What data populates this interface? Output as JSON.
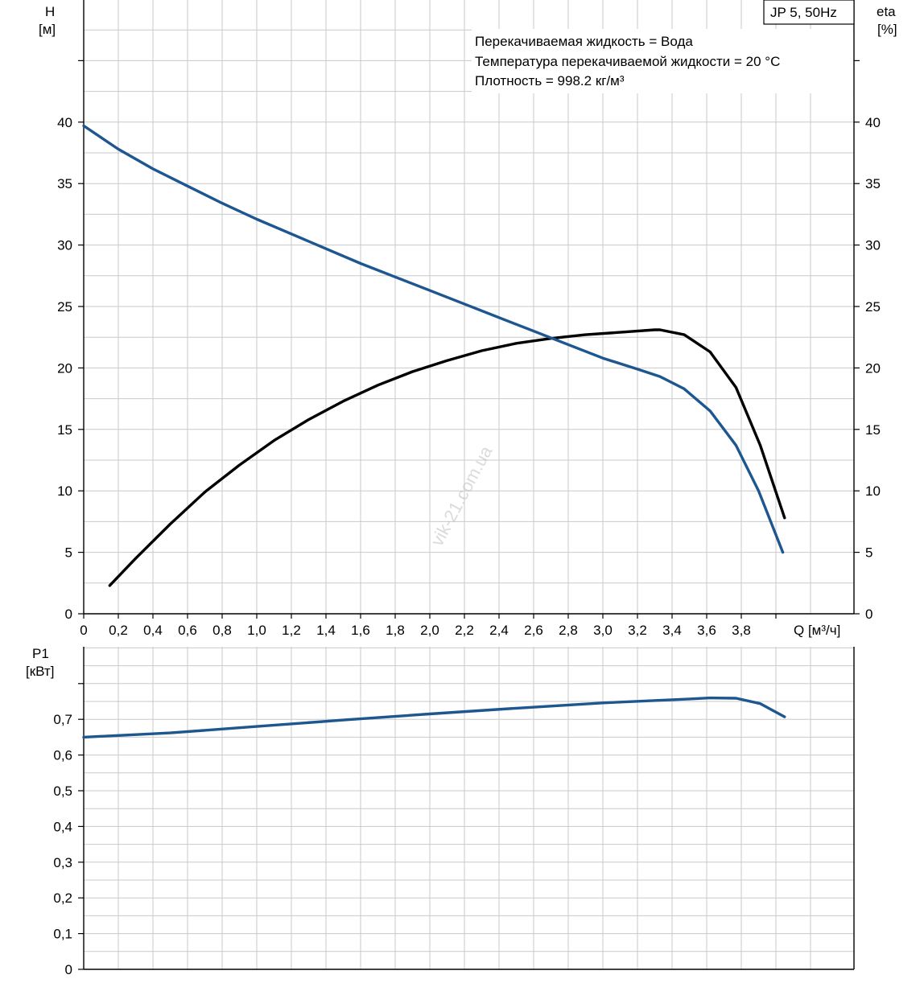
{
  "pump_label": "JP 5, 50Hz",
  "info_lines": [
    "Перекачиваемая жидкость = Вода",
    "Температура перекачиваемой жидкости = 20 °C",
    "Плотность = 998.2 кг/м³"
  ],
  "watermark": "vik-21.com.ua",
  "colors": {
    "head": "#1e5690",
    "efficiency": "#000000",
    "power": "#1e5690",
    "grid": "#c9c9c9"
  },
  "chart_data": [
    {
      "type": "line",
      "x_label": "Q [м³/ч]",
      "x_ticks": [
        "0",
        "0,2",
        "0,4",
        "0,6",
        "0,8",
        "1,0",
        "1,2",
        "1,4",
        "1,6",
        "1,8",
        "2,0",
        "2,2",
        "2,4",
        "2,6",
        "2,8",
        "3,0",
        "3,2",
        "3,4",
        "3,6",
        "3,8"
      ],
      "xlim": [
        0,
        4.4
      ],
      "y_left_label": [
        "H",
        "[м]"
      ],
      "y_right_label": [
        "eta",
        "[%]"
      ],
      "y_ticks": [
        "0",
        "5",
        "10",
        "15",
        "20",
        "25",
        "30",
        "35",
        "40"
      ],
      "ylim": [
        0,
        40
      ],
      "grid": true,
      "series": [
        {
          "name": "H",
          "axis": "left",
          "x": [
            0,
            0.2,
            0.4,
            0.6,
            0.8,
            1.0,
            1.2,
            1.4,
            1.6,
            1.8,
            2.0,
            2.2,
            2.4,
            2.6,
            2.8,
            3.0,
            3.2,
            3.33,
            3.47,
            3.62,
            3.77,
            3.9,
            4.04
          ],
          "values": [
            39.7,
            37.8,
            36.2,
            34.8,
            33.4,
            32.1,
            30.9,
            29.7,
            28.5,
            27.4,
            26.3,
            25.2,
            24.1,
            23.0,
            21.9,
            20.8,
            19.9,
            19.3,
            18.3,
            16.5,
            13.7,
            10.0,
            5.0
          ]
        },
        {
          "name": "eta",
          "axis": "right",
          "x": [
            0.15,
            0.3,
            0.5,
            0.7,
            0.9,
            1.1,
            1.3,
            1.5,
            1.7,
            1.9,
            2.1,
            2.3,
            2.5,
            2.7,
            2.9,
            3.1,
            3.3,
            3.33,
            3.47,
            3.62,
            3.77,
            3.91,
            4.05
          ],
          "values": [
            2.3,
            4.5,
            7.3,
            9.9,
            12.1,
            14.1,
            15.8,
            17.3,
            18.6,
            19.7,
            20.6,
            21.4,
            22.0,
            22.4,
            22.7,
            22.9,
            23.1,
            23.1,
            22.7,
            21.3,
            18.4,
            13.7,
            7.8
          ]
        }
      ]
    },
    {
      "type": "line",
      "y_label": [
        "P1",
        "[кВт]"
      ],
      "y_ticks": [
        "0",
        "0,1",
        "0,2",
        "0,3",
        "0,4",
        "0,5",
        "0,6",
        "0,7"
      ],
      "ylim": [
        0,
        0.8
      ],
      "xlim": [
        0,
        4.4
      ],
      "grid": true,
      "series": [
        {
          "name": "P1",
          "x": [
            0,
            0.5,
            1.0,
            1.5,
            2.0,
            2.5,
            3.0,
            3.5,
            3.62,
            3.77,
            3.91,
            4.05
          ],
          "values": [
            0.65,
            0.662,
            0.68,
            0.698,
            0.715,
            0.731,
            0.746,
            0.757,
            0.76,
            0.759,
            0.744,
            0.707
          ]
        }
      ]
    }
  ]
}
